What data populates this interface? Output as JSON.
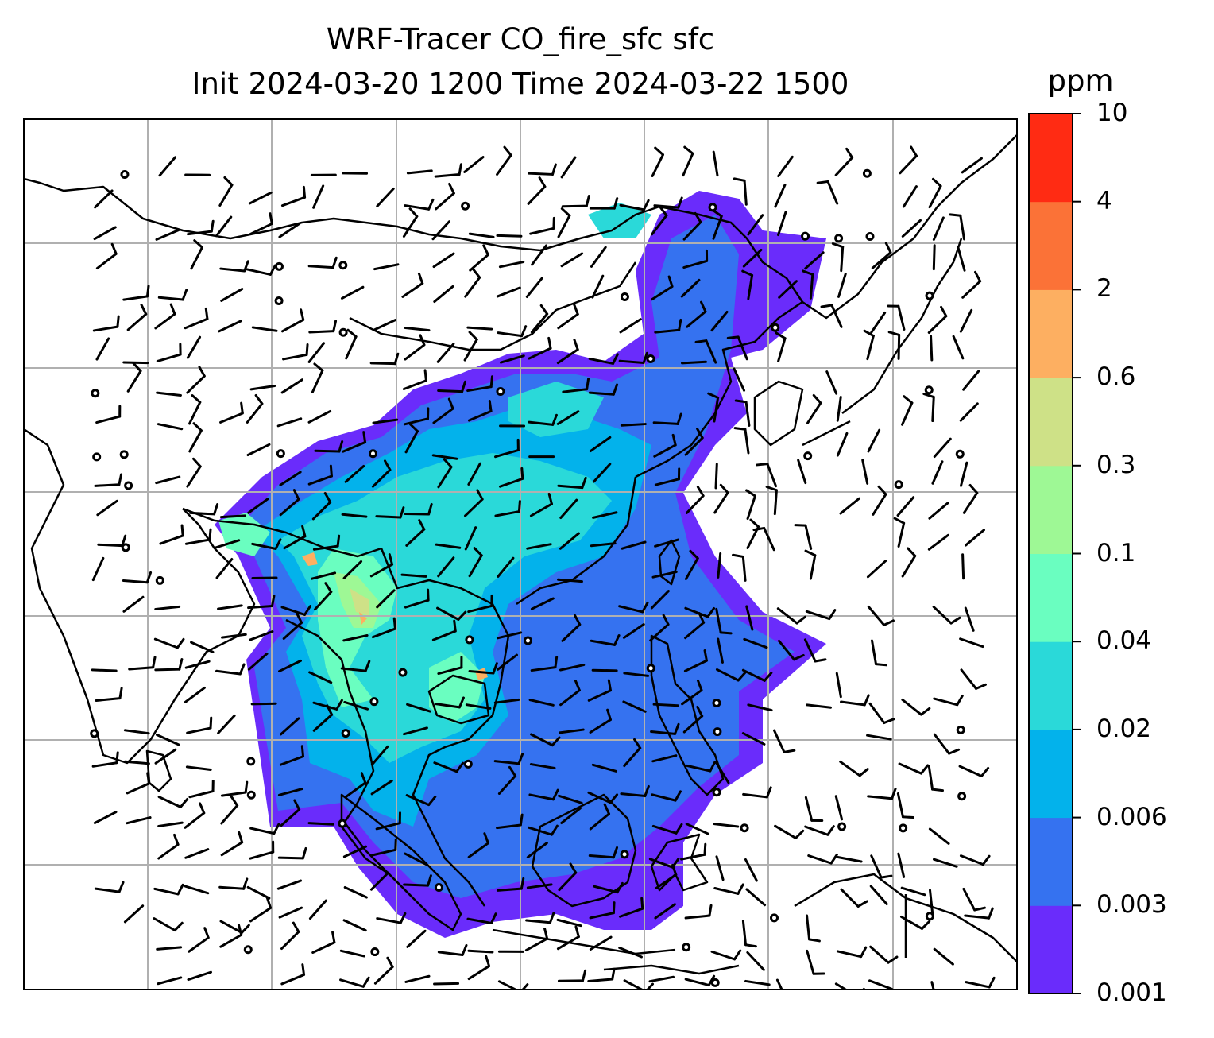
{
  "title": {
    "line1": "WRF-Tracer CO_fire_sfc sfc",
    "line2": "Init 2024-03-20 1200 Time 2024-03-22 1500"
  },
  "colorbar": {
    "unit": "ppm",
    "levels": [
      "0.001",
      "0.003",
      "0.006",
      "0.02",
      "0.04",
      "0.1",
      "0.3",
      "0.6",
      "2",
      "4",
      "10"
    ],
    "colors": [
      "#6a2cfb",
      "#3572f0",
      "#03b2eb",
      "#2ad9d9",
      "#6afec0",
      "#9ef895",
      "#cee187",
      "#fdaf61",
      "#fb7237",
      "#ff2b13"
    ]
  },
  "map": {
    "land_outline_color": "#000000",
    "gridline_color": "#b0b0b0",
    "background_color": "#ffffff",
    "symbols": [
      "wind-barb",
      "calm-circle"
    ]
  }
}
